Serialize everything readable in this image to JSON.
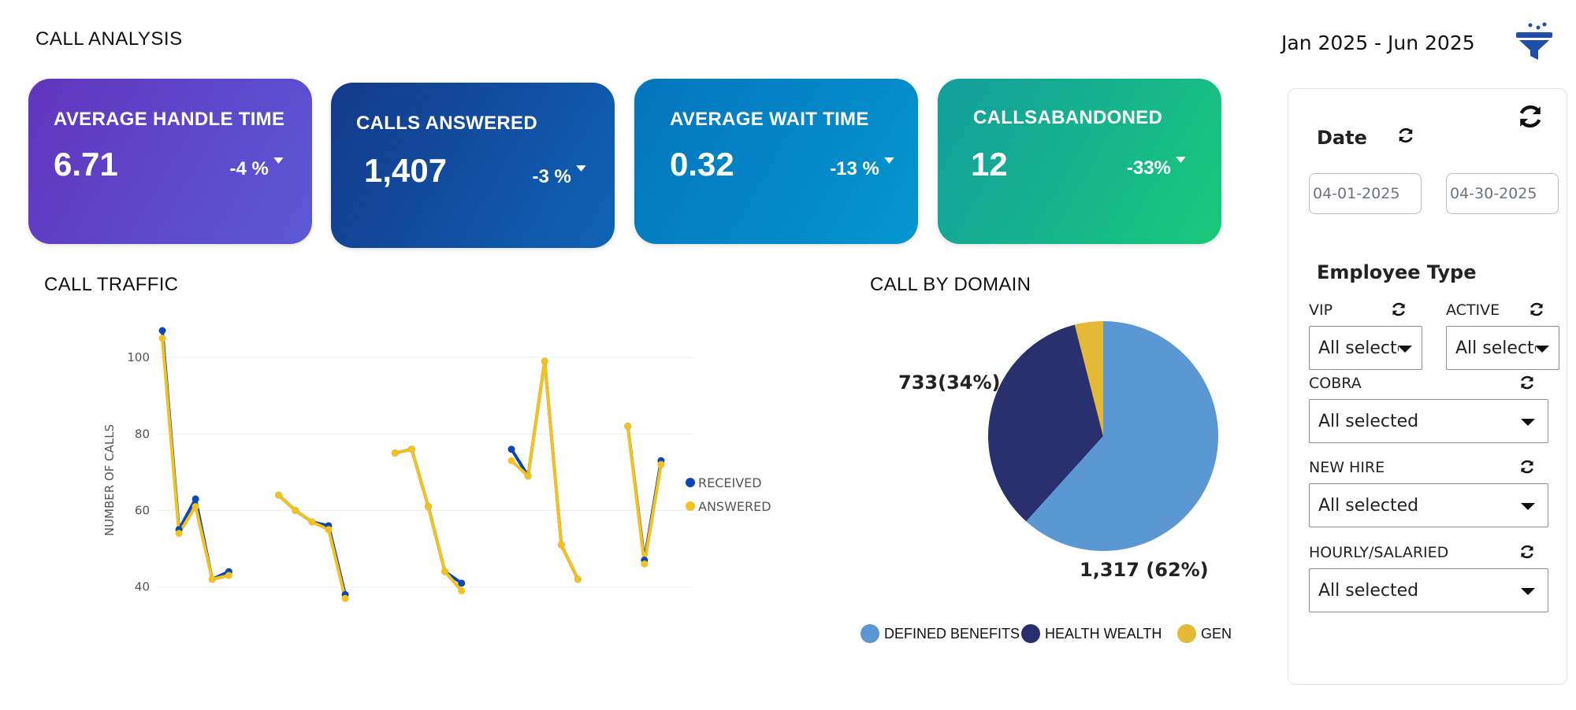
{
  "header": {
    "title": "CALL ANALYSIS",
    "date_range": "Jan 2025 - Jun 2025",
    "filter_icon": "funnel-icon"
  },
  "kpis": [
    {
      "title": "AVERAGE HANDLE TIME",
      "value": "6.71",
      "change": "-4 %",
      "arrow_icon": "arrow-down-icon",
      "color": "#6135be"
    },
    {
      "title": "CALLS ANSWERED",
      "value": "1,407",
      "change": "-3 %",
      "arrow_icon": "arrow-down-icon",
      "color": "#14398a"
    },
    {
      "title": "AVERAGE WAIT TIME",
      "value": "0.32",
      "change": "-13 %",
      "arrow_icon": "arrow-down-icon",
      "color": "#0474bd"
    },
    {
      "title": "CALLSABANDONED",
      "value": "12",
      "change": "-33%",
      "arrow_icon": "arrow-down-icon",
      "color": "#139d9e"
    }
  ],
  "sections": {
    "traffic_title": "CALL TRAFFIC",
    "domain_title": "CALL BY DOMAIN"
  },
  "chart_data": [
    {
      "type": "line",
      "title": "CALL TRAFFIC",
      "ylabel": "NUMBER OF CALLS",
      "xlabel": "",
      "ylim": [
        35,
        107
      ],
      "yticks": [
        40,
        60,
        80,
        100
      ],
      "grid": true,
      "legend_position": "right",
      "x": [
        1,
        2,
        3,
        4,
        5,
        6,
        7,
        8,
        9,
        10,
        11,
        12,
        13,
        14,
        15,
        16,
        17,
        18,
        19,
        20,
        21,
        22,
        23,
        24,
        25,
        26,
        27,
        28,
        29,
        30,
        31,
        32
      ],
      "series": [
        {
          "name": "RECEIVED",
          "color": "#0d47b5",
          "values": [
            107,
            55,
            63,
            42,
            44,
            null,
            null,
            64,
            60,
            57,
            56,
            38,
            null,
            null,
            75,
            76,
            61,
            44,
            41,
            null,
            null,
            76,
            69,
            99,
            51,
            42,
            null,
            null,
            82,
            47,
            73,
            null
          ]
        },
        {
          "name": "ANSWERED",
          "color": "#f3c21f",
          "values": [
            105,
            54,
            61,
            42,
            43,
            null,
            null,
            64,
            60,
            57,
            55,
            37,
            null,
            null,
            75,
            76,
            61,
            44,
            39,
            null,
            null,
            73,
            69,
            99,
            51,
            42,
            null,
            null,
            82,
            46,
            72,
            null
          ]
        }
      ]
    },
    {
      "type": "pie",
      "title": "CALL BY DOMAIN",
      "legend_position": "bottom",
      "slices": [
        {
          "name": "DEFINED BENEFITS",
          "value": 1317,
          "label": "1,317 (62%)",
          "color": "#5b97d3"
        },
        {
          "name": "HEALTH WEALTH",
          "value": 733,
          "label": "733(34%)",
          "color": "#2a2f6e"
        },
        {
          "name": "GEN",
          "value": 85,
          "label": "",
          "color": "#e4b936"
        }
      ]
    }
  ],
  "filters": {
    "refresh_icon": "refresh-icon",
    "date_label": "Date",
    "date_start": "04-01-2025",
    "date_end": "04-30-2025",
    "employee_type_label": "Employee Type",
    "vip": {
      "label": "VIP",
      "value": "All selected"
    },
    "active": {
      "label": "ACTIVE",
      "value": "All selected"
    },
    "cobra": {
      "label": "COBRA",
      "value": "All selected"
    },
    "new_hire": {
      "label": "NEW HIRE",
      "value": "All selected"
    },
    "hourly_salaried": {
      "label": "HOURLY/SALARIED",
      "value": "All selected"
    }
  }
}
